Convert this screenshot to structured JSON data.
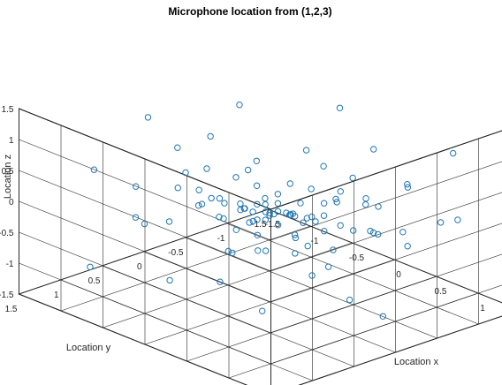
{
  "chart_data": {
    "type": "scatter",
    "title": "Microphone location from (1,2,3)",
    "xlabel": "Location x",
    "ylabel": "Location y",
    "zlabel": "Location z",
    "xlim": [
      -1.5,
      1.5
    ],
    "ylim": [
      -1.5,
      1.5
    ],
    "zlim": [
      -1.5,
      1.5
    ],
    "x_ticks": [
      "-1.5",
      "-1",
      "-0.5",
      "0",
      "0.5",
      "1"
    ],
    "y_ticks": [
      "-1.5",
      "-1",
      "-0.5",
      "0",
      "0.5",
      "1",
      "1.5"
    ],
    "z_ticks": [
      "-1.5",
      "-1",
      "-0.5",
      "0",
      "0.5",
      "1",
      "1.5"
    ],
    "grid": true,
    "marker": "circle",
    "marker_color": "#1f77b4",
    "points": [
      {
        "x": 0.1,
        "y": 0.0,
        "z": 0.02
      },
      {
        "x": 0.05,
        "y": 0.05,
        "z": -0.05
      },
      {
        "x": 0.15,
        "y": -0.05,
        "z": 0.0
      },
      {
        "x": 0.0,
        "y": -0.1,
        "z": 0.05
      },
      {
        "x": 0.2,
        "y": 0.1,
        "z": -0.1
      },
      {
        "x": -0.05,
        "y": 0.1,
        "z": 0.1
      },
      {
        "x": 0.1,
        "y": 0.15,
        "z": 0.08
      },
      {
        "x": 0.25,
        "y": 0.0,
        "z": 0.05
      },
      {
        "x": 0.0,
        "y": 0.05,
        "z": -0.15
      },
      {
        "x": 0.12,
        "y": -0.12,
        "z": -0.08
      },
      {
        "x": -0.1,
        "y": -0.05,
        "z": 0.0
      },
      {
        "x": 0.3,
        "y": 0.05,
        "z": 0.1
      },
      {
        "x": 0.05,
        "y": 0.2,
        "z": -0.05
      },
      {
        "x": 0.18,
        "y": 0.18,
        "z": 0.12
      },
      {
        "x": -0.15,
        "y": 0.05,
        "z": -0.1
      },
      {
        "x": 0.22,
        "y": -0.15,
        "z": 0.15
      },
      {
        "x": 0.08,
        "y": -0.2,
        "z": -0.12
      },
      {
        "x": -0.05,
        "y": -0.15,
        "z": 0.15
      },
      {
        "x": 0.35,
        "y": -0.05,
        "z": -0.05
      },
      {
        "x": 0.1,
        "y": 0.3,
        "z": 0.0
      },
      {
        "x": -0.2,
        "y": 0.15,
        "z": 0.05
      },
      {
        "x": 0.4,
        "y": 0.1,
        "z": -0.15
      },
      {
        "x": 0.0,
        "y": 0.35,
        "z": 0.15
      },
      {
        "x": 0.3,
        "y": 0.25,
        "z": 0.2
      },
      {
        "x": -0.25,
        "y": -0.1,
        "z": 0.2
      },
      {
        "x": 0.25,
        "y": -0.3,
        "z": -0.2
      },
      {
        "x": 0.45,
        "y": -0.2,
        "z": 0.05
      },
      {
        "x": -0.1,
        "y": 0.3,
        "z": -0.25
      },
      {
        "x": 0.15,
        "y": -0.35,
        "z": 0.25
      },
      {
        "x": 0.5,
        "y": 0.2,
        "z": 0.25
      },
      {
        "x": -0.3,
        "y": 0.25,
        "z": -0.2
      },
      {
        "x": 0.05,
        "y": -0.4,
        "z": -0.3
      },
      {
        "x": 0.35,
        "y": 0.4,
        "z": -0.3
      },
      {
        "x": -0.35,
        "y": -0.3,
        "z": -0.15
      },
      {
        "x": 0.55,
        "y": -0.1,
        "z": 0.35
      },
      {
        "x": -0.15,
        "y": 0.45,
        "z": 0.3
      },
      {
        "x": 0.2,
        "y": 0.5,
        "z": 0.35
      },
      {
        "x": -0.4,
        "y": 0.0,
        "z": 0.3
      },
      {
        "x": 0.6,
        "y": 0.3,
        "z": -0.25
      },
      {
        "x": 0.4,
        "y": -0.45,
        "z": 0.3
      },
      {
        "x": -0.2,
        "y": -0.45,
        "z": 0.1
      },
      {
        "x": 0.1,
        "y": 0.55,
        "z": -0.4
      },
      {
        "x": 0.65,
        "y": 0.0,
        "z": 0.0
      },
      {
        "x": -0.45,
        "y": 0.4,
        "z": 0.0
      },
      {
        "x": 0.3,
        "y": -0.55,
        "z": -0.35
      },
      {
        "x": 0.7,
        "y": -0.3,
        "z": -0.1
      },
      {
        "x": -0.5,
        "y": -0.2,
        "z": -0.35
      },
      {
        "x": 0.45,
        "y": 0.6,
        "z": 0.1
      },
      {
        "x": -0.05,
        "y": 0.65,
        "z": 0.45
      },
      {
        "x": 0.75,
        "y": 0.25,
        "z": 0.4
      },
      {
        "x": -0.55,
        "y": 0.2,
        "z": 0.45
      },
      {
        "x": 0.55,
        "y": -0.6,
        "z": 0.1
      },
      {
        "x": 0.0,
        "y": -0.65,
        "z": 0.4
      },
      {
        "x": 0.8,
        "y": 0.1,
        "z": -0.45
      },
      {
        "x": -0.6,
        "y": -0.45,
        "z": 0.25
      },
      {
        "x": 0.25,
        "y": 0.75,
        "z": -0.2
      },
      {
        "x": 0.85,
        "y": -0.45,
        "z": 0.3
      },
      {
        "x": -0.65,
        "y": 0.55,
        "z": -0.3
      },
      {
        "x": 0.5,
        "y": -0.8,
        "z": -0.5
      },
      {
        "x": 0.9,
        "y": 0.45,
        "z": 0.1
      },
      {
        "x": -0.7,
        "y": -0.1,
        "z": -0.55
      },
      {
        "x": 0.15,
        "y": -0.85,
        "z": 0.2
      },
      {
        "x": -0.3,
        "y": 0.8,
        "z": 0.55
      },
      {
        "x": 0.95,
        "y": -0.2,
        "z": 0.6
      },
      {
        "x": -0.8,
        "y": 0.3,
        "z": 0.7
      },
      {
        "x": 0.6,
        "y": 0.85,
        "z": 0.5
      },
      {
        "x": 0.05,
        "y": 0.9,
        "z": 0.75
      },
      {
        "x": 1.0,
        "y": 0.2,
        "z": 0.75
      },
      {
        "x": -0.85,
        "y": -0.6,
        "z": -0.1
      },
      {
        "x": 0.7,
        "y": -0.95,
        "z": 0.35
      },
      {
        "x": 1.05,
        "y": -0.6,
        "z": -0.3
      },
      {
        "x": -0.9,
        "y": 0.7,
        "z": 0.2
      },
      {
        "x": 0.35,
        "y": 0.95,
        "z": -0.55
      },
      {
        "x": -0.2,
        "y": -1.0,
        "z": -0.4
      },
      {
        "x": 1.1,
        "y": 0.6,
        "z": -0.2
      },
      {
        "x": -1.0,
        "y": 0.0,
        "z": 0.05
      },
      {
        "x": 0.85,
        "y": 1.0,
        "z": 0.25
      },
      {
        "x": 0.2,
        "y": -1.05,
        "z": 0.6
      },
      {
        "x": 1.15,
        "y": -0.05,
        "z": 0.25
      },
      {
        "x": -1.05,
        "y": -0.35,
        "z": 0.45
      },
      {
        "x": -0.5,
        "y": 1.0,
        "z": -0.05
      },
      {
        "x": 0.95,
        "y": -1.1,
        "z": -0.2
      },
      {
        "x": 1.2,
        "y": 0.9,
        "z": 0.6
      },
      {
        "x": -1.1,
        "y": 0.5,
        "z": -0.5
      },
      {
        "x": 0.45,
        "y": -1.15,
        "z": -0.65
      },
      {
        "x": -0.1,
        "y": 1.1,
        "z": -0.7
      },
      {
        "x": 1.25,
        "y": -0.4,
        "z": 0.85
      },
      {
        "x": -1.15,
        "y": -0.8,
        "z": 0.7
      },
      {
        "x": 0.6,
        "y": 1.15,
        "z": 0.95
      },
      {
        "x": -0.7,
        "y": -1.15,
        "z": 0.05
      },
      {
        "x": 1.3,
        "y": 0.35,
        "z": -0.6
      },
      {
        "x": -1.2,
        "y": 0.9,
        "z": 0.4
      },
      {
        "x": 0.05,
        "y": -1.2,
        "z": -0.9
      },
      {
        "x": 1.35,
        "y": -0.9,
        "z": 0.15
      },
      {
        "x": -1.25,
        "y": 0.2,
        "z": 0.9
      },
      {
        "x": 1.1,
        "y": 1.2,
        "z": -0.5
      },
      {
        "x": -0.4,
        "y": -1.25,
        "z": 0.85
      },
      {
        "x": 1.4,
        "y": 0.05,
        "z": -0.95
      },
      {
        "x": -1.3,
        "y": -0.5,
        "z": -0.85
      },
      {
        "x": 0.9,
        "y": -1.3,
        "z": 0.8
      },
      {
        "x": -0.95,
        "y": 1.2,
        "z": -0.9
      },
      {
        "x": 1.45,
        "y": 0.7,
        "z": 0.45
      }
    ]
  }
}
